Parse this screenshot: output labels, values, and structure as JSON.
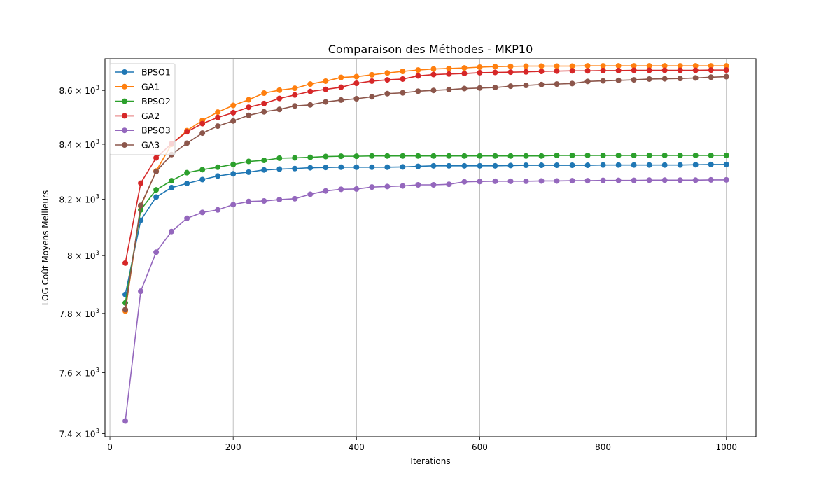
{
  "chart_data": {
    "type": "line",
    "title": "Comparaison des Méthodes - MKP10",
    "xlabel": "Iterations",
    "ylabel": "LOG Coût Moyens Meilleurs",
    "yscale": "log",
    "xlim": [
      -8,
      1048
    ],
    "ylim": [
      7390,
      8720
    ],
    "x_ticks": [
      0,
      200,
      400,
      600,
      800,
      1000
    ],
    "y_ticks": [
      {
        "value": 7400,
        "mantissa": "7.4",
        "base": "10",
        "exp": "3"
      },
      {
        "value": 7600,
        "mantissa": "7.6",
        "base": "10",
        "exp": "3"
      },
      {
        "value": 7800,
        "mantissa": "7.8",
        "base": "10",
        "exp": "3"
      },
      {
        "value": 8000,
        "mantissa": "8",
        "base": "10",
        "exp": "3"
      },
      {
        "value": 8200,
        "mantissa": "8.2",
        "base": "10",
        "exp": "3"
      },
      {
        "value": 8400,
        "mantissa": "8.4",
        "base": "10",
        "exp": "3"
      },
      {
        "value": 8600,
        "mantissa": "8.6",
        "base": "10",
        "exp": "3"
      }
    ],
    "grid": "x-vertical",
    "legend_position": "upper-left",
    "x": [
      25,
      50,
      75,
      100,
      125,
      150,
      175,
      200,
      225,
      250,
      275,
      300,
      325,
      350,
      375,
      400,
      425,
      450,
      475,
      500,
      525,
      550,
      575,
      600,
      625,
      650,
      675,
      700,
      725,
      750,
      775,
      800,
      825,
      850,
      875,
      900,
      925,
      950,
      975,
      1000
    ],
    "series": [
      {
        "name": "BPSO1",
        "color": "#1f77b4",
        "values": [
          7865,
          8125,
          8208,
          8242,
          8257,
          8271,
          8284,
          8292,
          8298,
          8306,
          8309,
          8311,
          8314,
          8315,
          8316,
          8316,
          8316,
          8316,
          8317,
          8319,
          8321,
          8321,
          8321,
          8321,
          8321,
          8322,
          8323,
          8323,
          8323,
          8323,
          8323,
          8324,
          8324,
          8324,
          8324,
          8324,
          8324,
          8325,
          8326,
          8326
        ]
      },
      {
        "name": "GA1",
        "color": "#ff7f0e",
        "values": [
          7808,
          8175,
          8302,
          8400,
          8450,
          8488,
          8519,
          8544,
          8565,
          8590,
          8601,
          8608,
          8624,
          8635,
          8649,
          8652,
          8659,
          8666,
          8672,
          8677,
          8681,
          8683,
          8685,
          8688,
          8690,
          8691,
          8692,
          8692,
          8692,
          8692,
          8693,
          8693,
          8693,
          8693,
          8693,
          8693,
          8693,
          8693,
          8693,
          8693
        ]
      },
      {
        "name": "BPSO2",
        "color": "#2ca02c",
        "values": [
          7836,
          8162,
          8234,
          8267,
          8296,
          8307,
          8316,
          8326,
          8337,
          8341,
          8349,
          8350,
          8352,
          8355,
          8356,
          8356,
          8357,
          8357,
          8357,
          8357,
          8357,
          8357,
          8357,
          8357,
          8357,
          8357,
          8357,
          8357,
          8359,
          8359,
          8359,
          8359,
          8359,
          8359,
          8359,
          8359,
          8359,
          8359,
          8359,
          8359
        ]
      },
      {
        "name": "GA2",
        "color": "#d62728",
        "values": [
          7974,
          8258,
          8350,
          8402,
          8446,
          8476,
          8499,
          8517,
          8537,
          8551,
          8570,
          8583,
          8596,
          8604,
          8612,
          8627,
          8635,
          8640,
          8643,
          8655,
          8660,
          8662,
          8664,
          8667,
          8668,
          8669,
          8670,
          8672,
          8673,
          8674,
          8674,
          8675,
          8675,
          8676,
          8676,
          8676,
          8676,
          8676,
          8677,
          8677
        ]
      },
      {
        "name": "BPSO3",
        "color": "#9467bd",
        "values": [
          7441,
          7876,
          8012,
          8085,
          8132,
          8153,
          8162,
          8181,
          8192,
          8194,
          8199,
          8202,
          8218,
          8230,
          8236,
          8237,
          8244,
          8246,
          8248,
          8252,
          8252,
          8254,
          8263,
          8264,
          8265,
          8265,
          8265,
          8266,
          8266,
          8267,
          8267,
          8268,
          8268,
          8268,
          8269,
          8269,
          8269,
          8269,
          8270,
          8270
        ]
      },
      {
        "name": "GA3",
        "color": "#8c564b",
        "values": [
          7813,
          8178,
          8300,
          8362,
          8404,
          8441,
          8467,
          8486,
          8507,
          8520,
          8529,
          8542,
          8546,
          8557,
          8564,
          8569,
          8576,
          8588,
          8591,
          8597,
          8600,
          8603,
          8607,
          8609,
          8611,
          8616,
          8619,
          8622,
          8624,
          8626,
          8634,
          8636,
          8638,
          8640,
          8643,
          8644,
          8645,
          8647,
          8650,
          8652
        ]
      }
    ]
  }
}
